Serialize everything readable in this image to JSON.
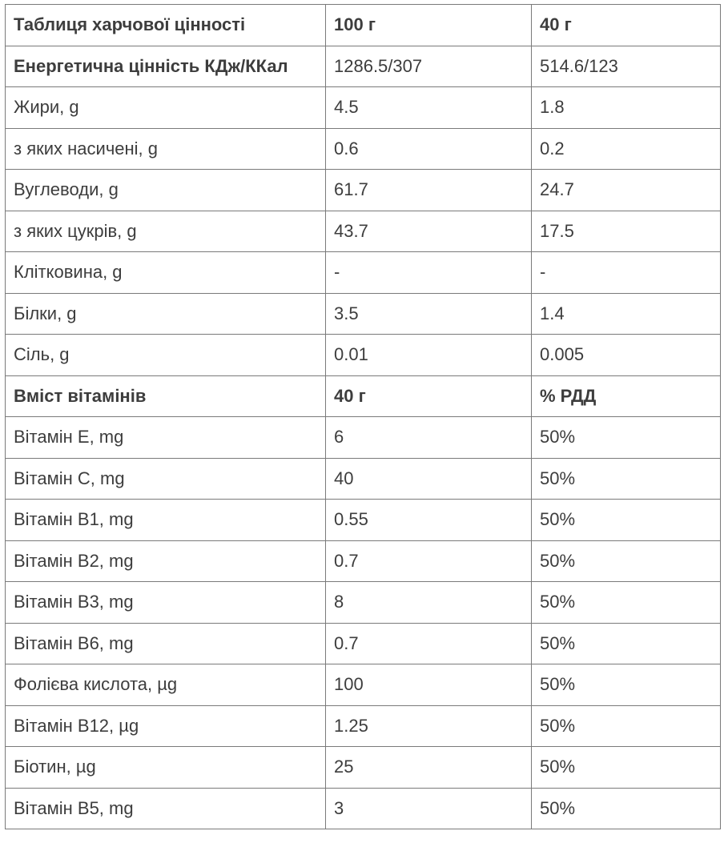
{
  "header": {
    "title": "Таблиця харчової цінності",
    "col_100g": "100 г",
    "col_40g": "40 г"
  },
  "energy": {
    "label": "Енергетична цінність КДж/ККал",
    "per_100g": "1286.5/307",
    "per_40g": "514.6/123"
  },
  "nutrients": [
    {
      "label": "Жири, g",
      "per_100g": "4.5",
      "per_40g": "1.8"
    },
    {
      "label": "з яких насичені, g",
      "per_100g": "0.6",
      "per_40g": "0.2"
    },
    {
      "label": "Вуглеводи, g",
      "per_100g": "61.7",
      "per_40g": "24.7"
    },
    {
      "label": "з яких цукрів, g",
      "per_100g": "43.7",
      "per_40g": "17.5"
    },
    {
      "label": "Клітковина, g",
      "per_100g": "-",
      "per_40g": "-"
    },
    {
      "label": "Білки, g",
      "per_100g": "3.5",
      "per_40g": "1.4"
    },
    {
      "label": "Сіль, g",
      "per_100g": "0.01",
      "per_40g": "0.005"
    }
  ],
  "vitamins_header": {
    "title": "Вміст вітамінів",
    "col_40g": "40 г",
    "col_rdd": "% РДД"
  },
  "vitamins": [
    {
      "label": "Вітамін E, mg",
      "per_40g": "6",
      "rdd": "50%"
    },
    {
      "label": "Вітамін C, mg",
      "per_40g": "40",
      "rdd": "50%"
    },
    {
      "label": "Вітамін B1, mg",
      "per_40g": "0.55",
      "rdd": "50%"
    },
    {
      "label": "Вітамін B2, mg",
      "per_40g": "0.7",
      "rdd": "50%"
    },
    {
      "label": "Вітамін B3, mg",
      "per_40g": "8",
      "rdd": "50%"
    },
    {
      "label": "Вітамін B6, mg",
      "per_40g": "0.7",
      "rdd": "50%"
    },
    {
      "label": "Фолієва кислота, µg",
      "per_40g": "100",
      "rdd": "50%"
    },
    {
      "label": "Вітамін B12, µg",
      "per_40g": "1.25",
      "rdd": "50%"
    },
    {
      "label": "Біотин, µg",
      "per_40g": "25",
      "rdd": "50%"
    },
    {
      "label": "Вітамін B5, mg",
      "per_40g": "3",
      "rdd": "50%"
    }
  ]
}
